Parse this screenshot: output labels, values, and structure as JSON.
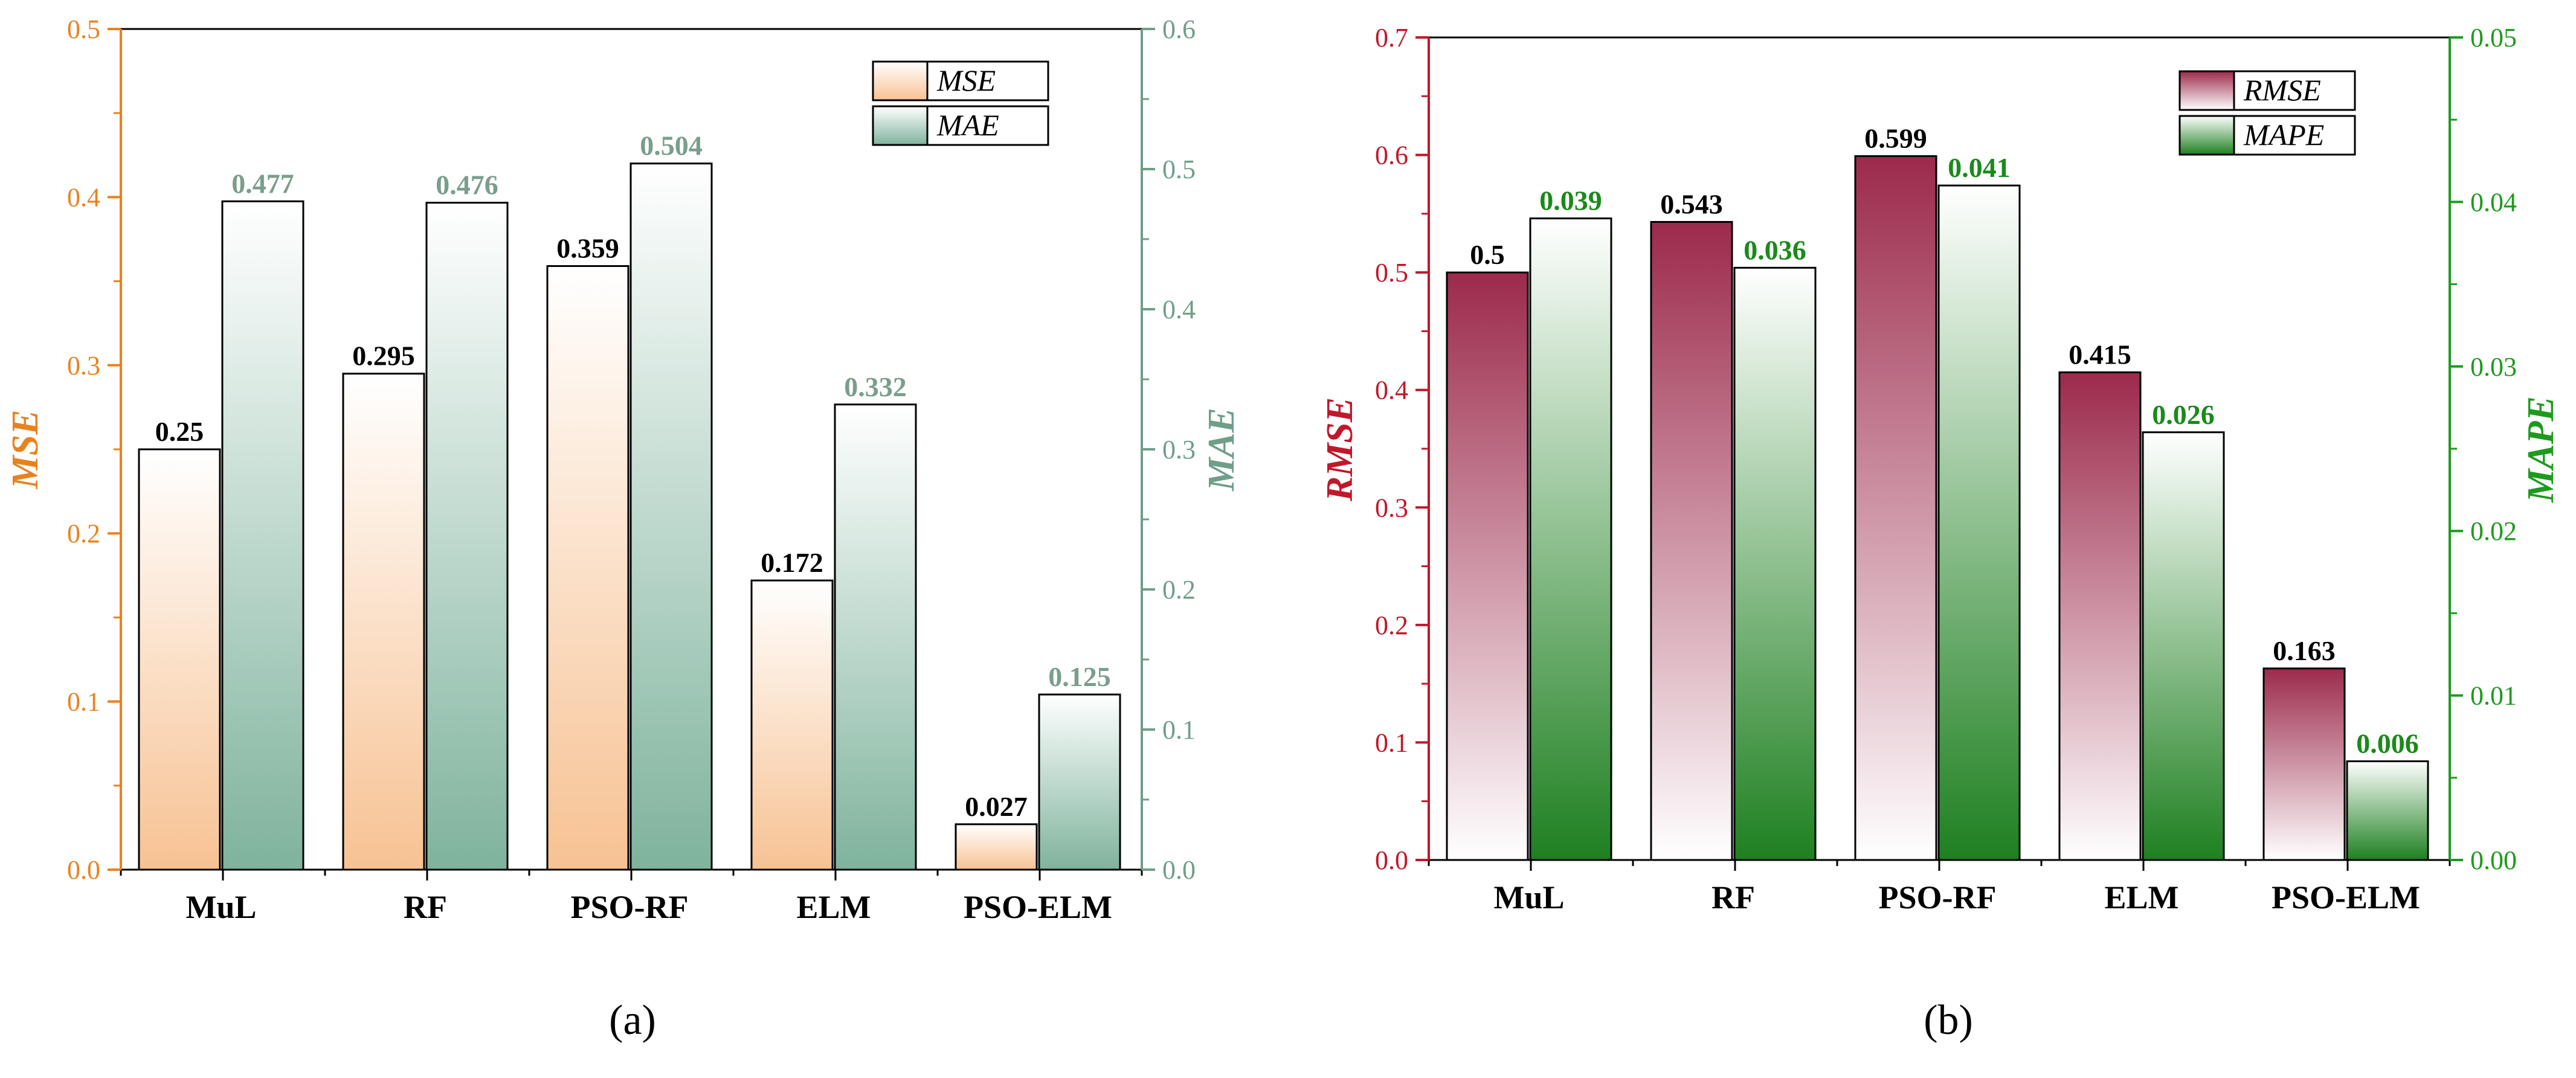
{
  "chart_data": [
    {
      "type": "bar",
      "panel_label": "(a)",
      "categories": [
        "MuL",
        "RF",
        "PSO-RF",
        "ELM",
        "PSO-ELM"
      ],
      "series": [
        {
          "name": "MSE",
          "axis": "left",
          "values": [
            0.25,
            0.295,
            0.359,
            0.172,
            0.027
          ],
          "labels": [
            "0.25",
            "0.295",
            "0.359",
            "0.172",
            "0.027"
          ],
          "fill_color": "#f7c293",
          "label_color": "#000000"
        },
        {
          "name": "MAE",
          "axis": "right",
          "values": [
            0.477,
            0.476,
            0.504,
            0.332,
            0.125
          ],
          "labels": [
            "0.477",
            "0.476",
            "0.504",
            "0.332",
            "0.125"
          ],
          "fill_color": "#7fb39d",
          "label_color": "#7a9e8c"
        }
      ],
      "left_axis": {
        "label": "MSE",
        "range": [
          0,
          0.5
        ],
        "step": 0.1,
        "decimals": 1,
        "color": "#e8821e"
      },
      "right_axis": {
        "label": "MAE",
        "range": [
          0,
          0.6
        ],
        "step": 0.1,
        "decimals": 1,
        "color": "#6f9e89"
      },
      "legend": {
        "position": "top-right"
      }
    },
    {
      "type": "bar",
      "panel_label": "(b)",
      "categories": [
        "MuL",
        "RF",
        "PSO-RF",
        "ELM",
        "PSO-ELM"
      ],
      "series": [
        {
          "name": "RMSE",
          "axis": "left",
          "values": [
            0.5,
            0.543,
            0.599,
            0.415,
            0.163
          ],
          "labels": [
            "0.5",
            "0.543",
            "0.599",
            "0.415",
            "0.163"
          ],
          "fill_color": "#9c2a4c",
          "label_color": "#000000"
        },
        {
          "name": "MAPE",
          "axis": "right",
          "values": [
            0.039,
            0.036,
            0.041,
            0.026,
            0.006
          ],
          "labels": [
            "0.039",
            "0.036",
            "0.041",
            "0.026",
            "0.006"
          ],
          "fill_color": "#1e8020",
          "label_color": "#1a8a1a"
        }
      ],
      "left_axis": {
        "label": "RMSE",
        "range": [
          0,
          0.7
        ],
        "step": 0.1,
        "decimals": 1,
        "color": "#c0182a"
      },
      "right_axis": {
        "label": "MAPE",
        "range": [
          0,
          0.05
        ],
        "step": 0.01,
        "decimals": 2,
        "color": "#1e9a1e"
      },
      "legend": {
        "position": "top-right"
      }
    }
  ]
}
